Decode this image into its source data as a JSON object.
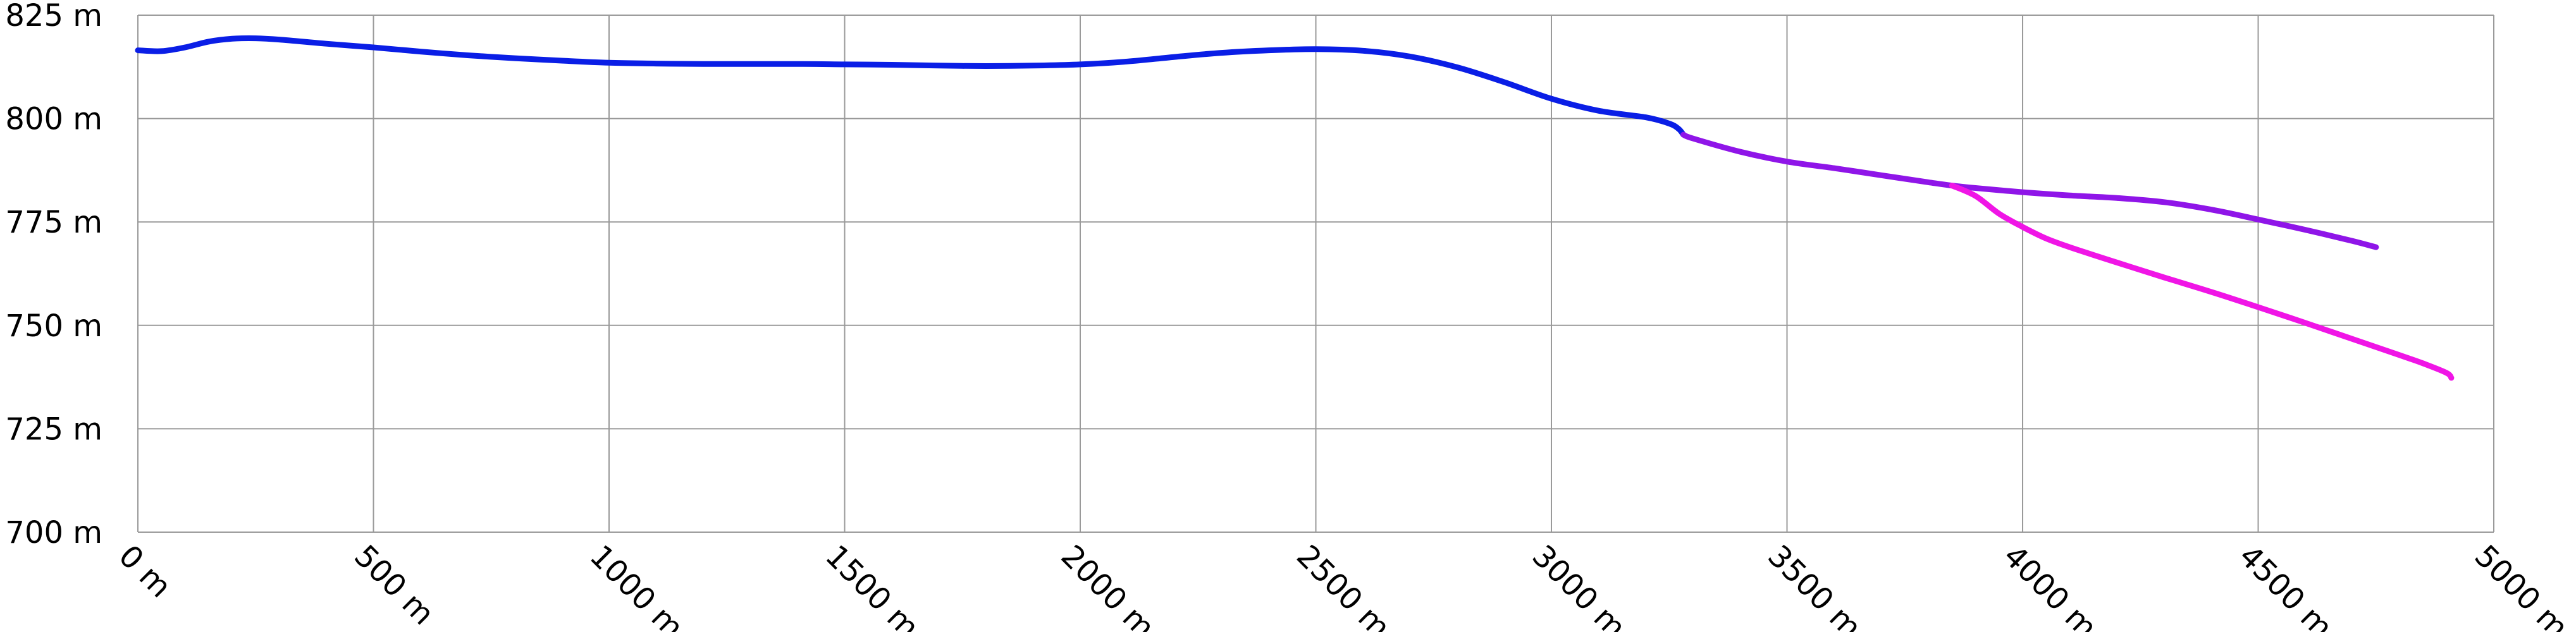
{
  "chart_data": {
    "type": "line",
    "title": "",
    "xlabel": "",
    "ylabel": "",
    "x_unit": "m",
    "y_unit": "m",
    "xlim": [
      0,
      5000
    ],
    "ylim": [
      700,
      825
    ],
    "x_ticks": [
      "0 m",
      "500 m",
      "1000 m",
      "1500 m",
      "2000 m",
      "2500 m",
      "3000 m",
      "3500 m",
      "4000 m",
      "4500 m",
      "5000 m"
    ],
    "y_ticks": [
      "825 m",
      "800 m",
      "775 m",
      "750 m",
      "725 m",
      "700 m"
    ],
    "grid": true,
    "legend": "none",
    "series": [
      {
        "color": "#0a1ee6",
        "x": [
          0,
          50,
          100,
          150,
          200,
          250,
          300,
          400,
          500,
          600,
          700,
          800,
          900,
          1000,
          1100,
          1200,
          1400,
          1500,
          1600,
          1700,
          1800,
          1900,
          2000,
          2100,
          2200,
          2300,
          2400,
          2500,
          2600,
          2700,
          2800,
          2900,
          3000,
          3100,
          3200,
          3250,
          3270,
          3280
        ],
        "y": [
          816.5,
          816.3,
          817.2,
          818.6,
          819.3,
          819.4,
          819.1,
          818.1,
          817.2,
          816.2,
          815.3,
          814.6,
          814.0,
          813.5,
          813.3,
          813.2,
          813.2,
          813.1,
          813.0,
          812.8,
          812.7,
          812.8,
          813.1,
          813.8,
          814.9,
          815.9,
          816.5,
          816.8,
          816.4,
          815.0,
          812.4,
          808.8,
          804.8,
          801.9,
          800.3,
          798.8,
          797.5,
          796.1
        ]
      },
      {
        "color": "#8f15e8",
        "x": [
          3280,
          3300,
          3400,
          3500,
          3600,
          3700,
          3800,
          3850,
          3900,
          4000,
          4100,
          4200,
          4300,
          4400,
          4500,
          4600,
          4700,
          4750
        ],
        "y": [
          796.1,
          795.2,
          792.0,
          789.6,
          788.0,
          786.3,
          784.6,
          783.8,
          783.2,
          782.2,
          781.4,
          780.8,
          779.8,
          778.0,
          775.6,
          773.1,
          770.4,
          768.9
        ]
      },
      {
        "color": "#f015e6",
        "x": [
          3850,
          3900,
          3950,
          4000,
          4050,
          4100,
          4200,
          4300,
          4400,
          4500,
          4600,
          4700,
          4800,
          4850,
          4900,
          4910
        ],
        "y": [
          783.8,
          781.3,
          777.0,
          773.8,
          771.0,
          768.9,
          765.2,
          761.6,
          758.1,
          754.4,
          750.6,
          746.7,
          742.8,
          740.8,
          738.5,
          737.3
        ]
      }
    ]
  }
}
